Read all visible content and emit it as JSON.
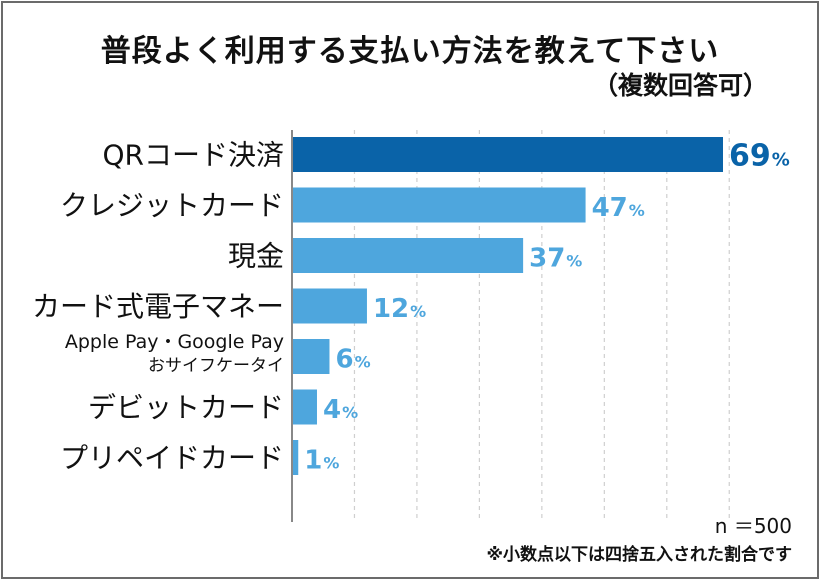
{
  "title": "普段よく利用する支払い方法を教えて下さい",
  "subtitle": "（複数回答可）",
  "notes": {
    "sample_size": "n ＝500",
    "rounding": "※小数点以下は四捨五入された割合です"
  },
  "colors": {
    "highlight": "#0a63a8",
    "bar": "#4ea6dd",
    "highlight_label": "#0a63a8",
    "label": "#4ea6dd",
    "grid": "#cfcfcf",
    "axis": "#888888"
  },
  "chart_data": {
    "type": "bar",
    "orientation": "horizontal",
    "title": "普段よく利用する支払い方法を教えて下さい",
    "subtitle": "（複数回答可）",
    "categories": [
      "QRコード決済",
      "クレジットカード",
      "現金",
      "カード式電子マネー",
      "Apple Pay・Google Pay\nおサイフケータイ",
      "デビットカード",
      "プリペイドカード"
    ],
    "values": [
      69,
      47,
      37,
      12,
      6,
      4,
      1
    ],
    "unit": "%",
    "xlim": [
      0,
      70
    ],
    "grid": true,
    "highlight_index": 0
  }
}
